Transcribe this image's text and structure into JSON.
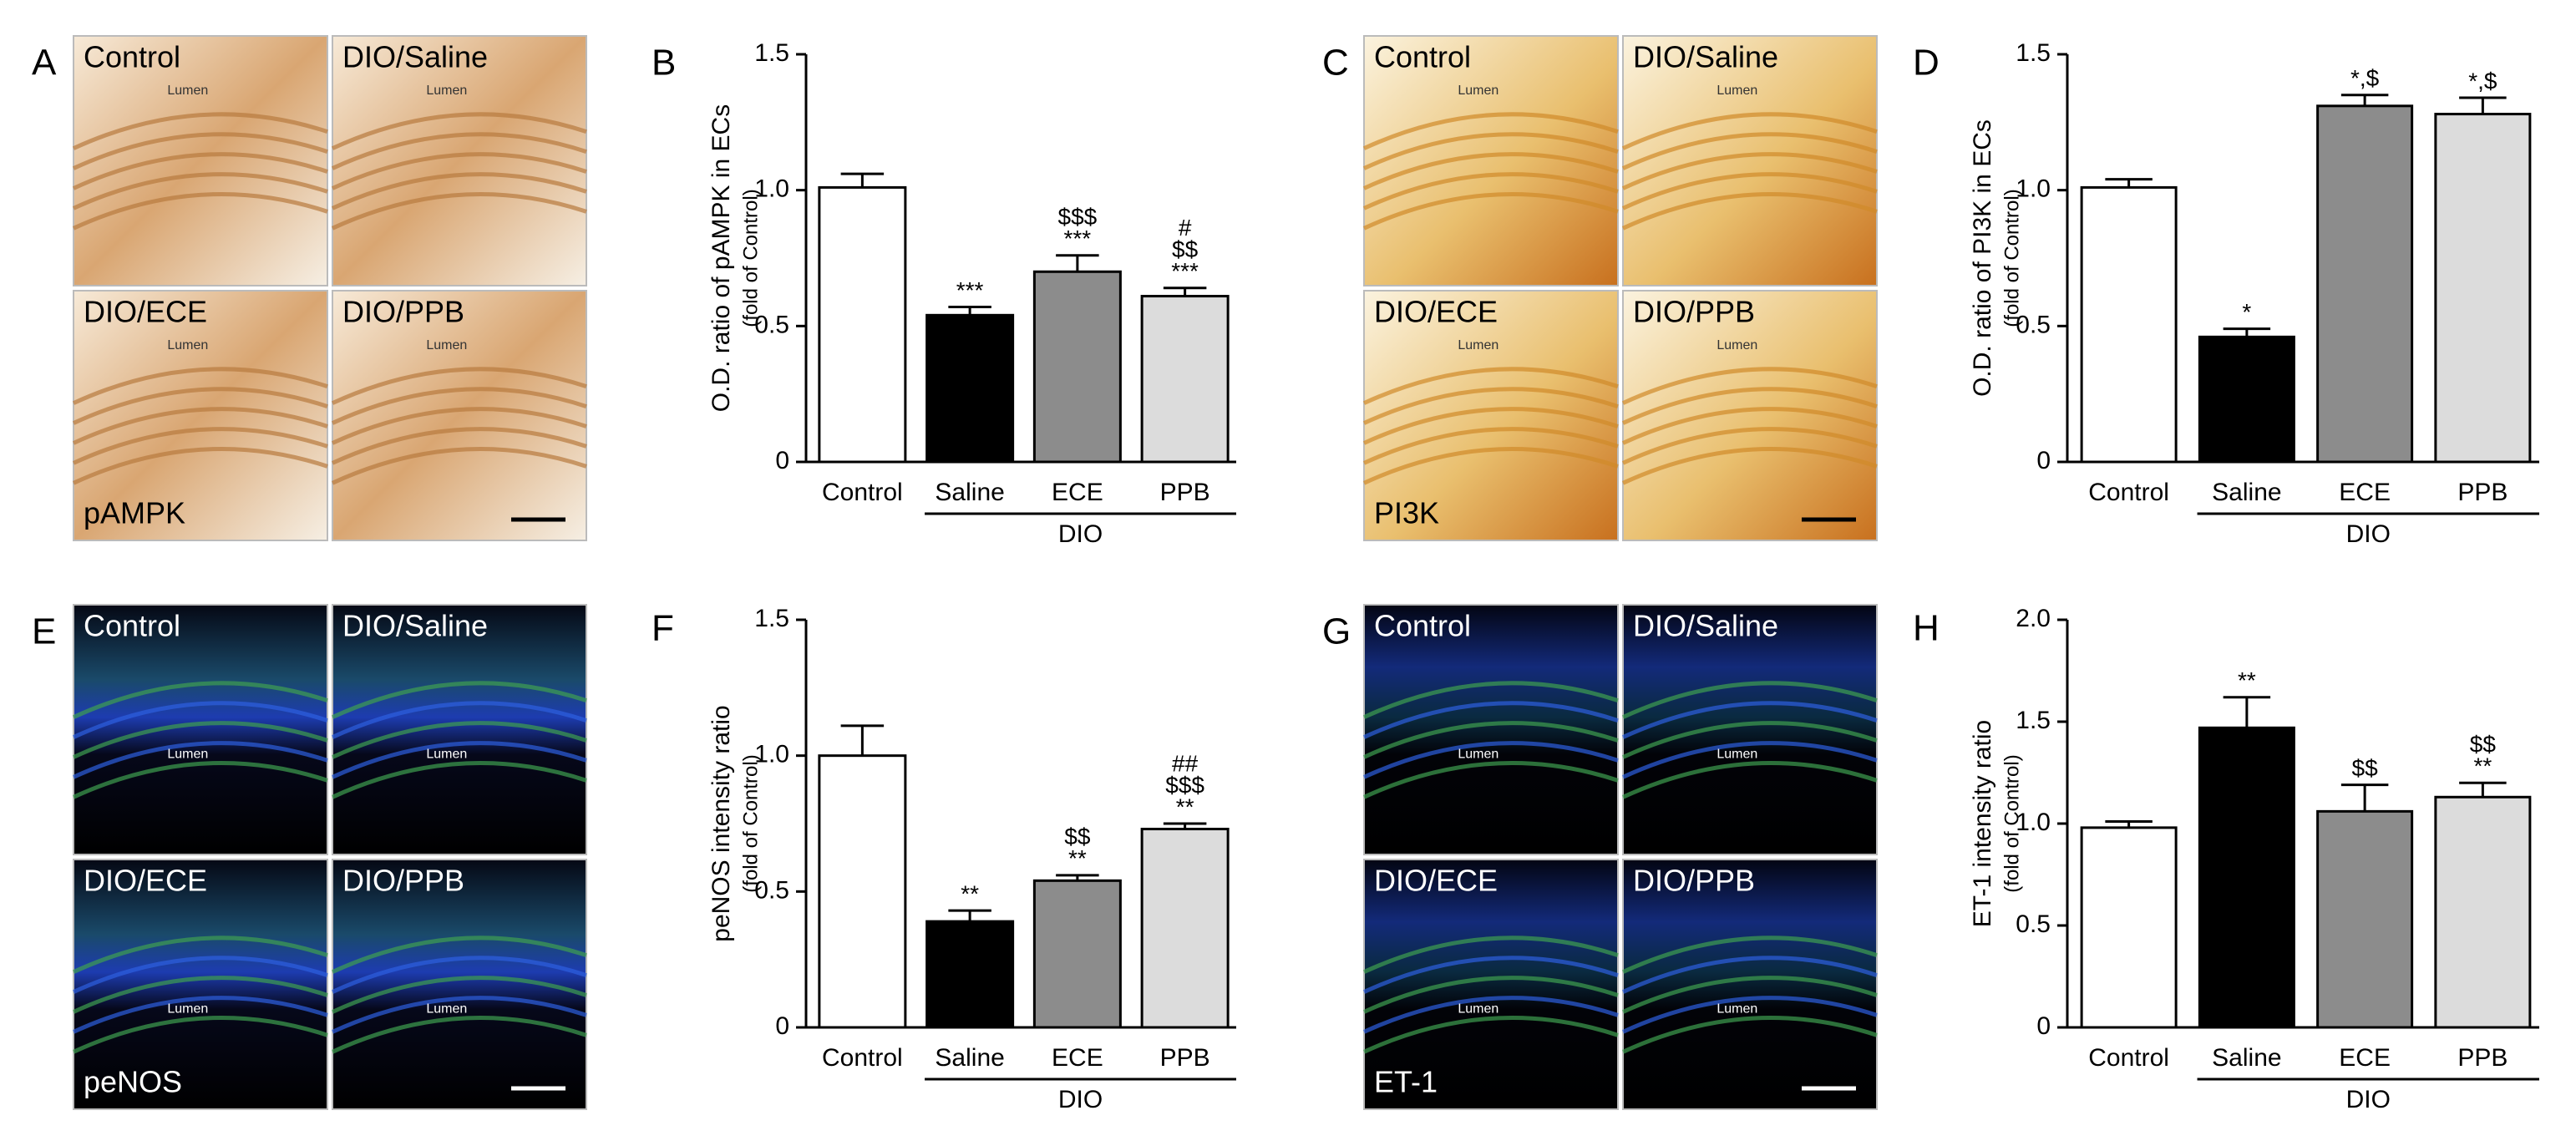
{
  "images": [
    {
      "panel_label": "A",
      "quadrants": [
        {
          "label": "Control",
          "lumen": "Lumen"
        },
        {
          "label": "DIO/Saline",
          "lumen": "Lumen"
        },
        {
          "label": "DIO/ECE",
          "lumen": "Lumen"
        },
        {
          "label": "DIO/PPB",
          "lumen": "Lumen"
        }
      ],
      "stain": "pAMPK"
    },
    {
      "panel_label": "C",
      "quadrants": [
        {
          "label": "Control",
          "lumen": "Lumen"
        },
        {
          "label": "DIO/Saline",
          "lumen": "Lumen"
        },
        {
          "label": "DIO/ECE",
          "lumen": "Lumen"
        },
        {
          "label": "DIO/PPB",
          "lumen": "Lumen"
        }
      ],
      "stain": "PI3K"
    },
    {
      "panel_label": "E",
      "quadrants": [
        {
          "label": "Control",
          "lumen": "Lumen"
        },
        {
          "label": "DIO/Saline",
          "lumen": "Lumen"
        },
        {
          "label": "DIO/ECE",
          "lumen": "Lumen"
        },
        {
          "label": "DIO/PPB",
          "lumen": "Lumen"
        }
      ],
      "stain": "peNOS"
    },
    {
      "panel_label": "G",
      "quadrants": [
        {
          "label": "Control",
          "lumen": "Lumen"
        },
        {
          "label": "DIO/Saline",
          "lumen": "Lumen"
        },
        {
          "label": "DIO/ECE",
          "lumen": "Lumen"
        },
        {
          "label": "DIO/PPB",
          "lumen": "Lumen"
        }
      ],
      "stain": "ET-1"
    }
  ],
  "chart_data": [
    {
      "type": "bar",
      "panel_label": "B",
      "y_label": "O.D. ratio of pAMPK in ECs",
      "y_sublabel": "(fold of Control)",
      "categories": [
        "Control",
        "Saline",
        "ECE",
        "PPB"
      ],
      "group_label": "DIO",
      "values": [
        1.01,
        0.54,
        0.7,
        0.61
      ],
      "errors": [
        0.05,
        0.03,
        0.06,
        0.03
      ],
      "colors": [
        "#ffffff",
        "#000000",
        "#8c8c8c",
        "#dcdcdc"
      ],
      "annotations": [
        [],
        [
          "***"
        ],
        [
          "$$$",
          "***"
        ],
        [
          "#",
          "$$",
          "***"
        ]
      ],
      "ylim": [
        0,
        1.5
      ],
      "yticks": [
        0,
        0.5,
        {
          "value": 1,
          "label": "1.0"
        },
        1.5
      ]
    },
    {
      "type": "bar",
      "panel_label": "D",
      "y_label": "O.D. ratio of PI3K in ECs",
      "y_sublabel": "(fold of Control)",
      "categories": [
        "Control",
        "Saline",
        "ECE",
        "PPB"
      ],
      "group_label": "DIO",
      "values": [
        1.01,
        0.46,
        1.31,
        1.28
      ],
      "errors": [
        0.03,
        0.03,
        0.04,
        0.06
      ],
      "colors": [
        "#ffffff",
        "#000000",
        "#8c8c8c",
        "#dcdcdc"
      ],
      "annotations": [
        [],
        [
          "*"
        ],
        [
          "*,$"
        ],
        [
          "*,$"
        ]
      ],
      "ylim": [
        0,
        1.5
      ],
      "yticks": [
        0,
        0.5,
        {
          "value": 1,
          "label": "1.0"
        },
        1.5
      ]
    },
    {
      "type": "bar",
      "panel_label": "F",
      "y_label": "peNOS intensity ratio",
      "y_sublabel": "(fold of Control)",
      "categories": [
        "Control",
        "Saline",
        "ECE",
        "PPB"
      ],
      "group_label": "DIO",
      "values": [
        1.0,
        0.39,
        0.54,
        0.73
      ],
      "errors": [
        0.11,
        0.04,
        0.02,
        0.02
      ],
      "colors": [
        "#ffffff",
        "#000000",
        "#8c8c8c",
        "#dcdcdc"
      ],
      "annotations": [
        [],
        [
          "**"
        ],
        [
          "$$",
          "**"
        ],
        [
          "##",
          "$$$",
          "**"
        ]
      ],
      "ylim": [
        0,
        1.5
      ],
      "yticks": [
        0,
        0.5,
        {
          "value": 1,
          "label": "1.0"
        },
        1.5
      ]
    },
    {
      "type": "bar",
      "panel_label": "H",
      "y_label": "ET-1 intensity ratio",
      "y_sublabel": "(fold of Control)",
      "categories": [
        "Control",
        "Saline",
        "ECE",
        "PPB"
      ],
      "group_label": "DIO",
      "values": [
        0.98,
        1.47,
        1.06,
        1.13
      ],
      "errors": [
        0.03,
        0.15,
        0.13,
        0.07
      ],
      "colors": [
        "#ffffff",
        "#000000",
        "#8c8c8c",
        "#dcdcdc"
      ],
      "annotations": [
        [],
        [
          "**"
        ],
        [
          "$$"
        ],
        [
          "$$",
          "**"
        ]
      ],
      "ylim": [
        0,
        2
      ],
      "yticks": [
        0,
        0.5,
        {
          "value": 1,
          "label": "1.0"
        },
        1.5,
        {
          "value": 2,
          "label": "2.0"
        }
      ]
    }
  ]
}
